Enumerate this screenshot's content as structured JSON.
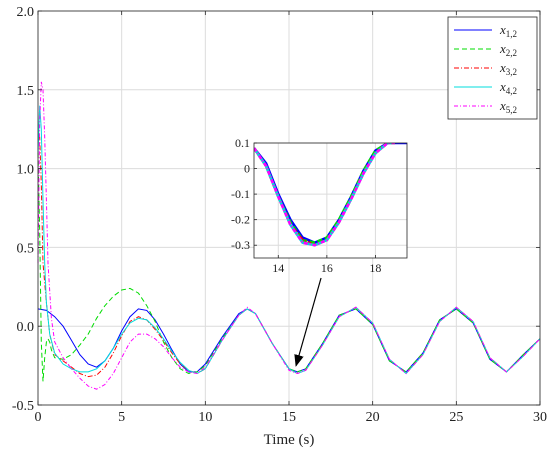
{
  "chart_data": [
    {
      "type": "line",
      "xlabel": "Time (s)",
      "ylabel": "",
      "xlim": [
        0,
        30
      ],
      "ylim": [
        -0.5,
        2.0
      ],
      "xticks": [
        0,
        5,
        10,
        15,
        20,
        25,
        30
      ],
      "yticks": [
        -0.5,
        0.0,
        0.5,
        1.0,
        1.5,
        2.0
      ],
      "xtick_labels": [
        "0",
        "5",
        "10",
        "15",
        "20",
        "25",
        "30"
      ],
      "ytick_labels": [
        "-0.5",
        "0.0",
        "0.5",
        "1.0",
        "1.5",
        "2.0"
      ],
      "grid": true,
      "legend_position": "top-right",
      "series": [
        {
          "name": "x1,2",
          "label_main": "x",
          "label_sub": "1,2",
          "color": "#0000ff",
          "dash": "solid",
          "x": [
            0,
            0.5,
            1,
            1.5,
            2,
            2.5,
            3,
            3.5,
            4,
            4.5,
            5,
            5.5,
            6,
            6.5,
            7,
            7.5,
            8,
            8.5,
            9,
            9.5,
            10,
            11,
            12,
            12.5,
            13,
            14,
            15,
            15.5,
            16,
            17,
            18,
            19,
            20,
            21,
            22,
            23,
            24,
            25,
            26,
            27,
            28,
            29,
            30
          ],
          "y": [
            0.11,
            0.1,
            0.06,
            0.0,
            -0.09,
            -0.18,
            -0.24,
            -0.26,
            -0.22,
            -0.14,
            -0.03,
            0.06,
            0.11,
            0.1,
            0.04,
            -0.05,
            -0.15,
            -0.24,
            -0.29,
            -0.29,
            -0.24,
            -0.07,
            0.08,
            0.11,
            0.08,
            -0.11,
            -0.27,
            -0.29,
            -0.27,
            -0.11,
            0.07,
            0.11,
            0.01,
            -0.22,
            -0.29,
            -0.17,
            0.04,
            0.11,
            0.02,
            -0.21,
            -0.29,
            -0.18,
            -0.08
          ]
        },
        {
          "name": "x2,2",
          "label_main": "x",
          "label_sub": "2,2",
          "color": "#00dd00",
          "dash": "5,3",
          "x": [
            0,
            0.1,
            0.2,
            0.3,
            0.4,
            0.5,
            0.6,
            0.7,
            0.8,
            1,
            1.5,
            2,
            2.5,
            3,
            3.5,
            4,
            4.5,
            5,
            5.5,
            6,
            6.5,
            7,
            7.5,
            8,
            8.5,
            9,
            9.5,
            10,
            11,
            12,
            12.5,
            13,
            14,
            15,
            15.5,
            16,
            17,
            18,
            19,
            20,
            21,
            22,
            23,
            24,
            25,
            26,
            27,
            28,
            29,
            30
          ],
          "y": [
            1.1,
            0.6,
            -0.1,
            -0.35,
            -0.2,
            -0.1,
            -0.08,
            -0.1,
            -0.15,
            -0.2,
            -0.21,
            -0.18,
            -0.12,
            -0.05,
            0.05,
            0.13,
            0.19,
            0.23,
            0.24,
            0.21,
            0.13,
            0.03,
            -0.1,
            -0.2,
            -0.27,
            -0.3,
            -0.29,
            -0.25,
            -0.08,
            0.07,
            0.11,
            0.08,
            -0.11,
            -0.27,
            -0.29,
            -0.27,
            -0.11,
            0.07,
            0.11,
            0.01,
            -0.22,
            -0.29,
            -0.17,
            0.04,
            0.11,
            0.02,
            -0.21,
            -0.29,
            -0.18,
            -0.08
          ]
        },
        {
          "name": "x3,2",
          "label_main": "x",
          "label_sub": "3,2",
          "color": "#ff0000",
          "dash": "5,2,1,2",
          "x": [
            0,
            0.1,
            0.2,
            0.3,
            0.5,
            0.7,
            1,
            1.5,
            2,
            2.5,
            3,
            3.5,
            4,
            4.5,
            5,
            5.5,
            6,
            6.5,
            7,
            7.5,
            8,
            8.5,
            9,
            9.5,
            10,
            11,
            12,
            12.5,
            13,
            14,
            15,
            15.5,
            16,
            17,
            18,
            19,
            20,
            21,
            22,
            23,
            24,
            25,
            26,
            27,
            28,
            29,
            30
          ],
          "y": [
            1.2,
            1.2,
            0.9,
            0.4,
            0.15,
            -0.05,
            -0.18,
            -0.22,
            -0.26,
            -0.3,
            -0.32,
            -0.31,
            -0.26,
            -0.17,
            -0.06,
            0.03,
            0.06,
            0.04,
            -0.02,
            -0.09,
            -0.17,
            -0.24,
            -0.28,
            -0.3,
            -0.27,
            -0.09,
            0.07,
            0.11,
            0.08,
            -0.11,
            -0.27,
            -0.3,
            -0.28,
            -0.12,
            0.06,
            0.12,
            0.02,
            -0.21,
            -0.3,
            -0.18,
            0.03,
            0.12,
            0.03,
            -0.2,
            -0.29,
            -0.19,
            -0.08
          ]
        },
        {
          "name": "x4,2",
          "label_main": "x",
          "label_sub": "4,2",
          "color": "#00dddd",
          "dash": "solid",
          "x": [
            0,
            0.1,
            0.2,
            0.3,
            0.4,
            0.5,
            0.7,
            1,
            1.5,
            2,
            2.5,
            3,
            3.5,
            4,
            4.5,
            5,
            5.5,
            6,
            6.5,
            7,
            7.5,
            8,
            8.5,
            9,
            9.5,
            10,
            11,
            12,
            12.5,
            13,
            14,
            15,
            15.5,
            16,
            17,
            18,
            19,
            20,
            21,
            22,
            23,
            24,
            25,
            26,
            27,
            28,
            29,
            30
          ],
          "y": [
            1.1,
            1.4,
            1.25,
            0.8,
            0.4,
            0.15,
            -0.05,
            -0.17,
            -0.24,
            -0.27,
            -0.29,
            -0.29,
            -0.27,
            -0.22,
            -0.14,
            -0.05,
            0.02,
            0.05,
            0.04,
            -0.01,
            -0.08,
            -0.16,
            -0.23,
            -0.28,
            -0.3,
            -0.27,
            -0.09,
            0.07,
            0.11,
            0.08,
            -0.11,
            -0.27,
            -0.3,
            -0.28,
            -0.12,
            0.06,
            0.12,
            0.02,
            -0.21,
            -0.3,
            -0.18,
            0.03,
            0.12,
            0.03,
            -0.2,
            -0.29,
            -0.19,
            -0.08
          ]
        },
        {
          "name": "x5,2",
          "label_main": "x",
          "label_sub": "5,2",
          "color": "#ff00ff",
          "dash": "4,2,1,2",
          "x": [
            0,
            0.1,
            0.2,
            0.3,
            0.4,
            0.5,
            0.6,
            0.8,
            1,
            1.5,
            2,
            2.5,
            3,
            3.5,
            4,
            4.5,
            5,
            5.5,
            6,
            6.5,
            7,
            7.5,
            8,
            8.5,
            9,
            9.5,
            10,
            11,
            12,
            12.5,
            13,
            14,
            15,
            15.5,
            16,
            17,
            18,
            19,
            20,
            21,
            22,
            23,
            24,
            25,
            26,
            27,
            28,
            29,
            30
          ],
          "y": [
            0.4,
            1.3,
            1.55,
            1.5,
            1.2,
            0.8,
            0.4,
            0.05,
            -0.1,
            -0.2,
            -0.27,
            -0.33,
            -0.38,
            -0.4,
            -0.37,
            -0.3,
            -0.2,
            -0.1,
            -0.05,
            -0.05,
            -0.08,
            -0.13,
            -0.2,
            -0.26,
            -0.29,
            -0.3,
            -0.26,
            -0.09,
            0.07,
            0.12,
            0.08,
            -0.11,
            -0.28,
            -0.3,
            -0.28,
            -0.12,
            0.06,
            0.12,
            0.02,
            -0.21,
            -0.3,
            -0.18,
            0.03,
            0.12,
            0.03,
            -0.2,
            -0.29,
            -0.19,
            -0.08
          ]
        }
      ]
    },
    {
      "type": "line",
      "xlabel": "",
      "ylabel": "",
      "xlim": [
        13,
        19.3
      ],
      "ylim": [
        -0.35,
        0.1
      ],
      "xticks": [
        14,
        16,
        18
      ],
      "yticks": [
        -0.3,
        -0.2,
        -0.1,
        0,
        0.1
      ],
      "xtick_labels": [
        "14",
        "16",
        "18"
      ],
      "ytick_labels": [
        "-0.3",
        "-0.2",
        "-0.1",
        "0",
        "0.1"
      ],
      "grid": true,
      "series": [
        {
          "name": "x1,2",
          "color": "#0000ff",
          "dash": "solid",
          "x": [
            13,
            13.5,
            14,
            14.5,
            15,
            15.5,
            16,
            16.5,
            17,
            17.5,
            18,
            18.5,
            18.8,
            19.3
          ],
          "y": [
            0.08,
            0.02,
            -0.1,
            -0.2,
            -0.27,
            -0.29,
            -0.27,
            -0.2,
            -0.11,
            -0.01,
            0.07,
            0.1,
            0.1,
            0.1
          ]
        },
        {
          "name": "x2,2",
          "color": "#00dd00",
          "dash": "5,3",
          "x": [
            13,
            13.5,
            14,
            14.5,
            15,
            15.5,
            16,
            16.5,
            17,
            17.5,
            18,
            18.5,
            18.8
          ],
          "y": [
            0.08,
            0.01,
            -0.11,
            -0.21,
            -0.28,
            -0.29,
            -0.27,
            -0.2,
            -0.11,
            -0.01,
            0.07,
            0.1,
            0.1
          ]
        },
        {
          "name": "x3,2",
          "color": "#ff0000",
          "dash": "5,2,1,2",
          "x": [
            13,
            13.5,
            14,
            14.5,
            15,
            15.5,
            16,
            16.5,
            17,
            17.5,
            18,
            18.5,
            18.8
          ],
          "y": [
            0.08,
            0.01,
            -0.11,
            -0.22,
            -0.28,
            -0.3,
            -0.28,
            -0.21,
            -0.12,
            -0.02,
            0.06,
            0.1,
            0.1
          ]
        },
        {
          "name": "x4,2",
          "color": "#00dddd",
          "dash": "solid",
          "x": [
            13,
            13.5,
            14,
            14.5,
            15,
            15.5,
            16,
            16.5,
            17,
            17.5,
            18,
            18.5,
            18.8
          ],
          "y": [
            0.08,
            0.01,
            -0.11,
            -0.22,
            -0.29,
            -0.3,
            -0.28,
            -0.21,
            -0.12,
            -0.02,
            0.06,
            0.1,
            0.1
          ]
        },
        {
          "name": "x5,2",
          "color": "#ff00ff",
          "dash": "4,2,1,2",
          "x": [
            13,
            13.5,
            14,
            14.5,
            15,
            15.5,
            16,
            16.5,
            17,
            17.5,
            18,
            18.5,
            18.8
          ],
          "y": [
            0.08,
            0.01,
            -0.11,
            -0.22,
            -0.29,
            -0.3,
            -0.28,
            -0.21,
            -0.12,
            -0.02,
            0.06,
            0.1,
            0.1
          ]
        }
      ]
    }
  ],
  "annotation": {
    "arrow_from": {
      "x": 15.6,
      "y": -0.15
    },
    "arrow_to": {
      "x": 15.3,
      "y": -0.27
    }
  }
}
